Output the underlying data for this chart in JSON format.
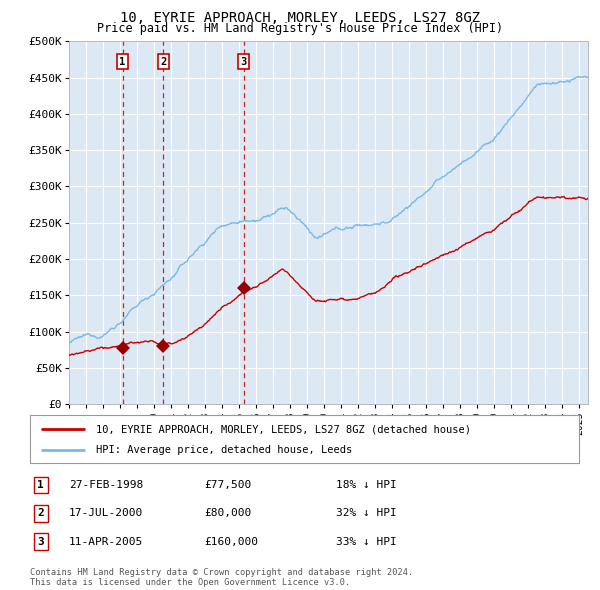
{
  "title": "10, EYRIE APPROACH, MORLEY, LEEDS, LS27 8GZ",
  "subtitle": "Price paid vs. HM Land Registry's House Price Index (HPI)",
  "xlim": [
    1995.0,
    2025.5
  ],
  "ylim": [
    0,
    500000
  ],
  "yticks": [
    0,
    50000,
    100000,
    150000,
    200000,
    250000,
    300000,
    350000,
    400000,
    450000,
    500000
  ],
  "ytick_labels": [
    "£0",
    "£50K",
    "£100K",
    "£150K",
    "£200K",
    "£250K",
    "£300K",
    "£350K",
    "£400K",
    "£450K",
    "£500K"
  ],
  "background_color": "#dce9f5",
  "hpi_color": "#7ab8e8",
  "price_color": "#cc0000",
  "marker_color": "#990000",
  "vline_color": "#cc0000",
  "grid_color": "#ffffff",
  "sale1_year": 1998.15,
  "sale1_price": 77500,
  "sale1_label": "1",
  "sale2_year": 2000.54,
  "sale2_price": 80000,
  "sale2_label": "2",
  "sale3_year": 2005.27,
  "sale3_price": 160000,
  "sale3_label": "3",
  "legend_line1": "10, EYRIE APPROACH, MORLEY, LEEDS, LS27 8GZ (detached house)",
  "legend_line2": "HPI: Average price, detached house, Leeds",
  "table_row1": [
    "1",
    "27-FEB-1998",
    "£77,500",
    "18% ↓ HPI"
  ],
  "table_row2": [
    "2",
    "17-JUL-2000",
    "£80,000",
    "32% ↓ HPI"
  ],
  "table_row3": [
    "3",
    "11-APR-2005",
    "£160,000",
    "33% ↓ HPI"
  ],
  "footnote1": "Contains HM Land Registry data © Crown copyright and database right 2024.",
  "footnote2": "This data is licensed under the Open Government Licence v3.0."
}
